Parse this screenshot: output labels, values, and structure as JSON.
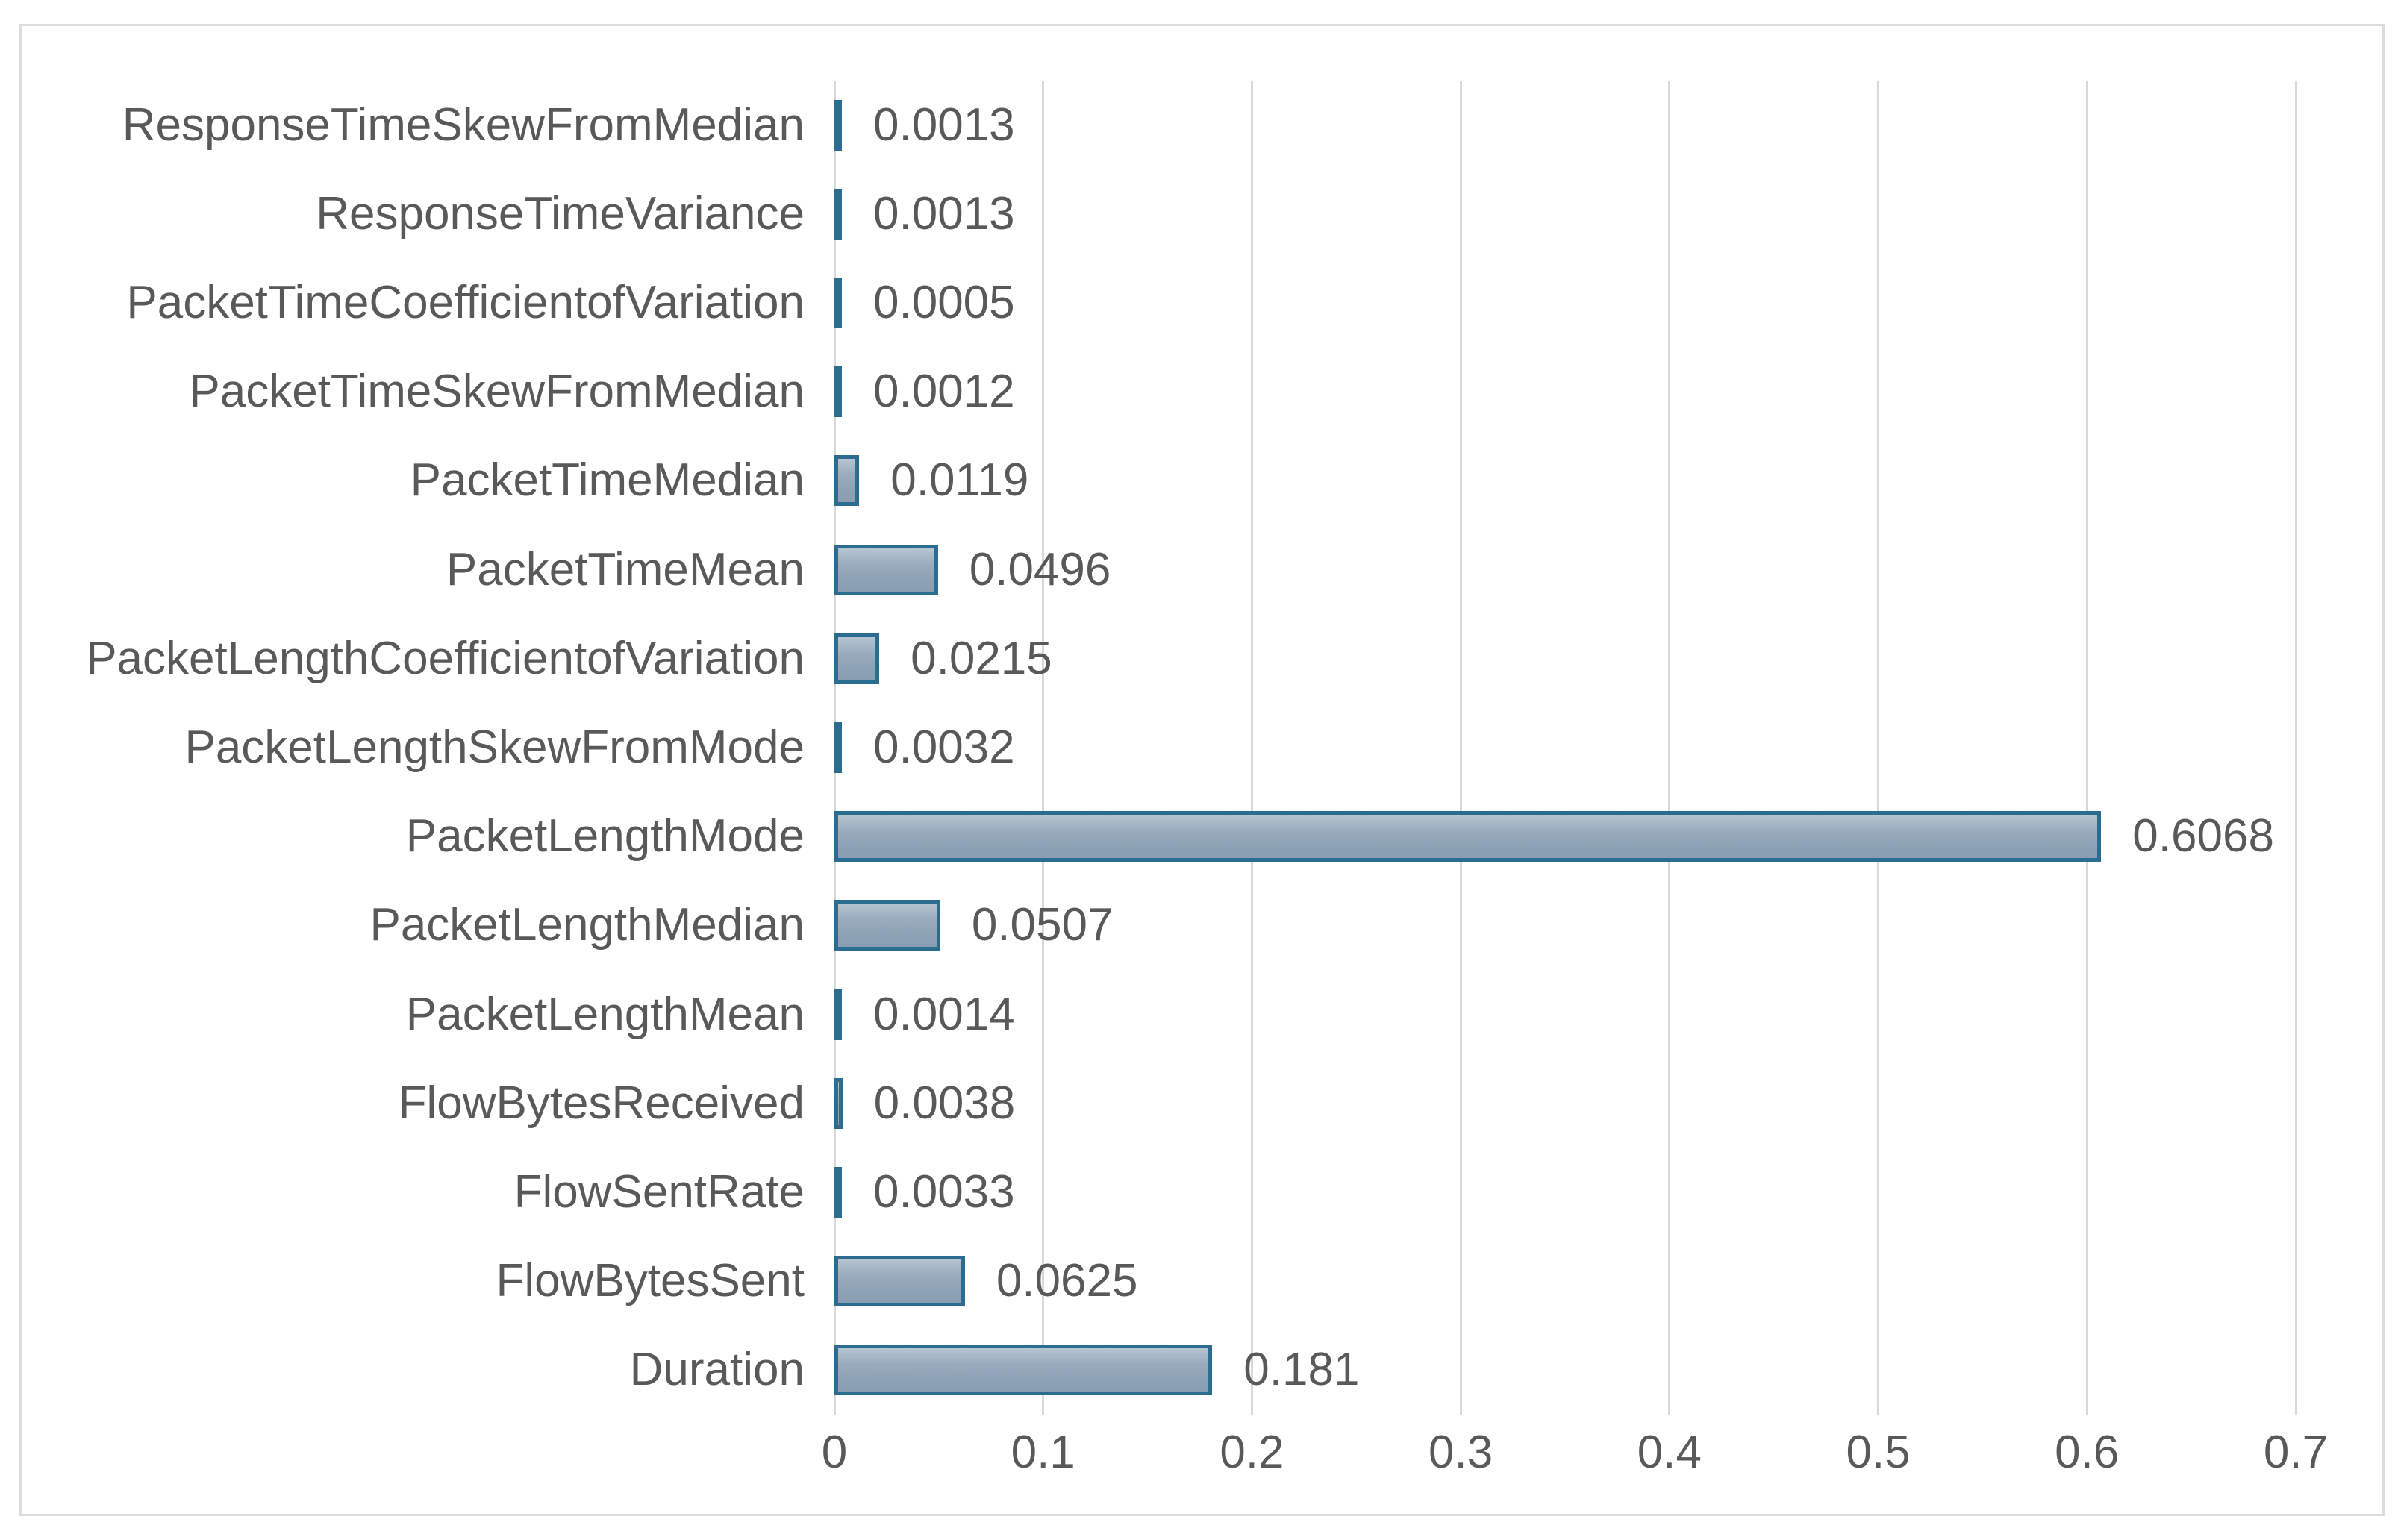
{
  "chart_data": {
    "type": "bar",
    "orientation": "horizontal",
    "title": "",
    "xlabel": "",
    "ylabel": "",
    "xlim": [
      0,
      0.7
    ],
    "grid": true,
    "legend": false,
    "categories": [
      "ResponseTimeSkewFromMedian",
      "ResponseTimeVariance",
      "PacketTimeCoefficientofVariation",
      "PacketTimeSkewFromMedian",
      "PacketTimeMedian",
      "PacketTimeMean",
      "PacketLengthCoefficientofVariation",
      "PacketLengthSkewFromMode",
      "PacketLengthMode",
      "PacketLengthMedian",
      "PacketLengthMean",
      "FlowBytesReceived",
      "FlowSentRate",
      "FlowBytesSent",
      "Duration"
    ],
    "values": [
      0.0013,
      0.0013,
      0.0005,
      0.0012,
      0.0119,
      0.0496,
      0.0215,
      0.0032,
      0.6068,
      0.0507,
      0.0014,
      0.0038,
      0.0033,
      0.0625,
      0.181
    ],
    "value_labels": [
      "0.0013",
      "0.0013",
      "0.0005",
      "0.0012",
      "0.0119",
      "0.0496",
      "0.0215",
      "0.0032",
      "0.6068",
      "0.0507",
      "0.0014",
      "0.0038",
      "0.0033",
      "0.0625",
      "0.181"
    ],
    "x_ticks": [
      "0",
      "0.1",
      "0.2",
      "0.3",
      "0.4",
      "0.5",
      "0.6",
      "0.7"
    ],
    "colors": {
      "bar_fill": "#93a7ba",
      "bar_border": "#2b6d90",
      "gridline": "#d9d9d9",
      "frame_border": "#dcdcdc",
      "text": "#595959",
      "background": "#ffffff"
    }
  }
}
